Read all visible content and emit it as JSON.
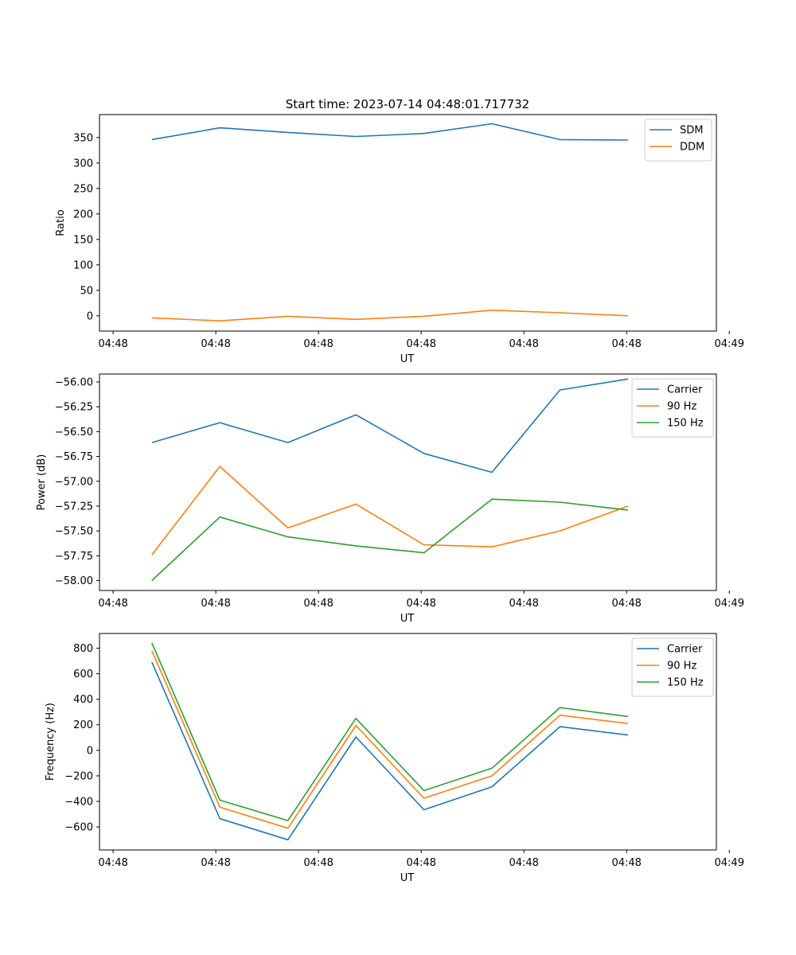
{
  "figure_title": "Start time: 2023-07-14 04:48:01.717732",
  "colors": {
    "c0": "#1f77b4",
    "c1": "#ff7f0e",
    "c2": "#2ca02c"
  },
  "chart_data": [
    {
      "type": "line",
      "title": "Start time: 2023-07-14 04:48:01.717732",
      "xlabel": "UT",
      "ylabel": "Ratio",
      "x": [
        1,
        2,
        3,
        4,
        5,
        6,
        7,
        8
      ],
      "xlim": [
        0.23,
        9.3
      ],
      "ylim": [
        -30,
        395
      ],
      "xticks": [
        0.43,
        1.94,
        3.45,
        4.96,
        6.47,
        7.98,
        9.49
      ],
      "xtick_labels": [
        "04:48",
        "04:48",
        "04:48",
        "04:48",
        "04:48",
        "04:48",
        "04:49"
      ],
      "yticks": [
        0,
        50,
        100,
        150,
        200,
        250,
        300,
        350
      ],
      "ytick_labels": [
        "0",
        "50",
        "100",
        "150",
        "200",
        "250",
        "300",
        "350"
      ],
      "legend": "top-right",
      "series": [
        {
          "name": "SDM",
          "color": "#1f77b4",
          "values": [
            346,
            369,
            360,
            352,
            358,
            377,
            346,
            345
          ]
        },
        {
          "name": "DDM",
          "color": "#ff7f0e",
          "values": [
            -4,
            -10,
            -1,
            -7,
            -1,
            11,
            6,
            0
          ]
        }
      ]
    },
    {
      "type": "line",
      "title": "",
      "xlabel": "UT",
      "ylabel": "Power (dB)",
      "x": [
        1,
        2,
        3,
        4,
        5,
        6,
        7,
        8
      ],
      "xlim": [
        0.23,
        9.3
      ],
      "ylim": [
        -58.1,
        -55.92
      ],
      "xticks": [
        0.43,
        1.94,
        3.45,
        4.96,
        6.47,
        7.98,
        9.49
      ],
      "xtick_labels": [
        "04:48",
        "04:48",
        "04:48",
        "04:48",
        "04:48",
        "04:48",
        "04:49"
      ],
      "yticks": [
        -58.0,
        -57.75,
        -57.5,
        -57.25,
        -57.0,
        -56.75,
        -56.5,
        -56.25,
        -56.0
      ],
      "ytick_labels": [
        "−58.00",
        "−57.75",
        "−57.50",
        "−57.25",
        "−57.00",
        "−56.75",
        "−56.50",
        "−56.25",
        "−56.00"
      ],
      "legend": "top-right",
      "series": [
        {
          "name": "Carrier",
          "color": "#1f77b4",
          "values": [
            -56.61,
            -56.41,
            -56.61,
            -56.33,
            -56.72,
            -56.91,
            -56.08,
            -55.97
          ]
        },
        {
          "name": "90 Hz",
          "color": "#ff7f0e",
          "values": [
            -57.74,
            -56.85,
            -57.47,
            -57.23,
            -57.64,
            -57.66,
            -57.5,
            -57.25
          ]
        },
        {
          "name": "150 Hz",
          "color": "#2ca02c",
          "values": [
            -58.0,
            -57.36,
            -57.56,
            -57.65,
            -57.72,
            -57.18,
            -57.21,
            -57.29
          ]
        }
      ]
    },
    {
      "type": "line",
      "title": "",
      "xlabel": "UT",
      "ylabel": "Frequency (Hz)",
      "x": [
        1,
        2,
        3,
        4,
        5,
        6,
        7,
        8
      ],
      "xlim": [
        0.23,
        9.3
      ],
      "ylim": [
        -780,
        915
      ],
      "xticks": [
        0.43,
        1.94,
        3.45,
        4.96,
        6.47,
        7.98,
        9.49
      ],
      "xtick_labels": [
        "04:48",
        "04:48",
        "04:48",
        "04:48",
        "04:48",
        "04:48",
        "04:49"
      ],
      "yticks": [
        -600,
        -400,
        -200,
        0,
        200,
        400,
        600,
        800
      ],
      "ytick_labels": [
        "−600",
        "−400",
        "−200",
        "0",
        "200",
        "400",
        "600",
        "800"
      ],
      "legend": "top-right",
      "series": [
        {
          "name": "Carrier",
          "color": "#1f77b4",
          "values": [
            690,
            -535,
            -700,
            105,
            -465,
            -285,
            185,
            120
          ]
        },
        {
          "name": "90 Hz",
          "color": "#ff7f0e",
          "values": [
            780,
            -445,
            -610,
            195,
            -375,
            -200,
            275,
            210
          ]
        },
        {
          "name": "150 Hz",
          "color": "#2ca02c",
          "values": [
            840,
            -390,
            -550,
            250,
            -315,
            -140,
            335,
            265
          ]
        }
      ]
    }
  ]
}
